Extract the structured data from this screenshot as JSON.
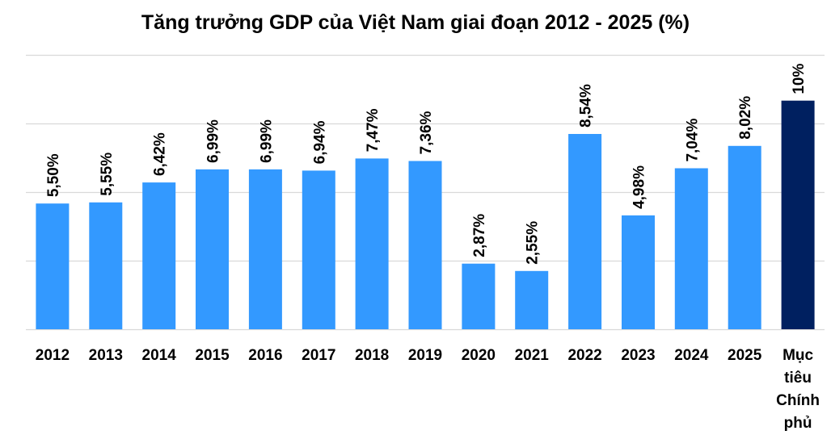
{
  "chart_data": {
    "type": "bar",
    "title": "Tăng trưởng GDP của Việt Nam giai đoạn 2012 - 2025 (%)",
    "categories": [
      "2012",
      "2013",
      "2014",
      "2015",
      "2016",
      "2017",
      "2018",
      "2019",
      "2020",
      "2021",
      "2022",
      "2023",
      "2024",
      "2025",
      "Mục tiêu Chính phủ"
    ],
    "category_lines": [
      [
        "2012"
      ],
      [
        "2013"
      ],
      [
        "2014"
      ],
      [
        "2015"
      ],
      [
        "2016"
      ],
      [
        "2017"
      ],
      [
        "2018"
      ],
      [
        "2019"
      ],
      [
        "2020"
      ],
      [
        "2021"
      ],
      [
        "2022"
      ],
      [
        "2023"
      ],
      [
        "2024"
      ],
      [
        "2025"
      ],
      [
        "Mục",
        "tiêu",
        "Chính",
        "phủ"
      ]
    ],
    "values": [
      5.5,
      5.55,
      6.42,
      6.99,
      6.99,
      6.94,
      7.47,
      7.36,
      2.87,
      2.55,
      8.54,
      4.98,
      7.04,
      8.02,
      10
    ],
    "data_labels": [
      "5,50%",
      "5,55%",
      "6,42%",
      "6,99%",
      "6,99%",
      "6,94%",
      "7,47%",
      "7,36%",
      "2,87%",
      "2,55%",
      "8,54%",
      "4,98%",
      "7,04%",
      "8,02%",
      "10%"
    ],
    "ylim": [
      0,
      12
    ],
    "gridlines": [
      0,
      3,
      6,
      9,
      12
    ],
    "xlabel": "",
    "ylabel": "",
    "colors": {
      "bar": "#3399ff",
      "highlight": "#002060"
    },
    "highlight_index": 14
  }
}
